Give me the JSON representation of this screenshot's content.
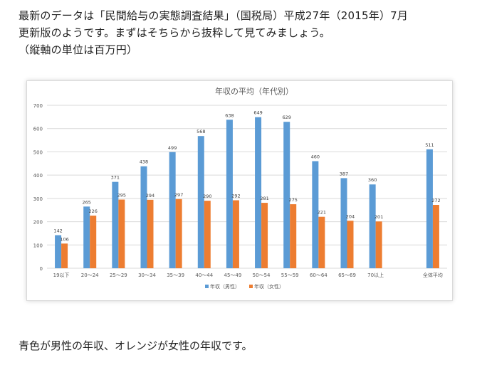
{
  "intro": {
    "line1": "最新のデータは「民間給与の実態調査結果」（国税局）平成27年（2015年）7月",
    "line2": "更新版のようです。まずはそちらから抜粋して見てみましょう。",
    "line3": "（縦軸の単位は百万円）"
  },
  "chart_data": {
    "type": "bar",
    "title": "年収の平均（年代別）",
    "categories": [
      "19以下",
      "20～24",
      "25～29",
      "30～34",
      "35～39",
      "40～44",
      "45～49",
      "50～54",
      "55～59",
      "60～64",
      "65～69",
      "70以上",
      "全体平均"
    ],
    "series": [
      {
        "name": "年収（男性）",
        "color": "#5b9bd5",
        "values": [
          142,
          265,
          371,
          438,
          499,
          568,
          638,
          649,
          629,
          460,
          387,
          360,
          511
        ]
      },
      {
        "name": "年収（女性）",
        "color": "#ed7d31",
        "values": [
          106,
          226,
          295,
          294,
          297,
          290,
          292,
          281,
          275,
          221,
          204,
          201,
          272
        ]
      }
    ],
    "ylim": [
      0,
      700
    ],
    "yticks": [
      0,
      100,
      200,
      300,
      400,
      500,
      600,
      700
    ],
    "grid": true,
    "legend": "bottom"
  },
  "footer": {
    "text": "青色が男性の年収、オレンジが女性の年収です。"
  }
}
